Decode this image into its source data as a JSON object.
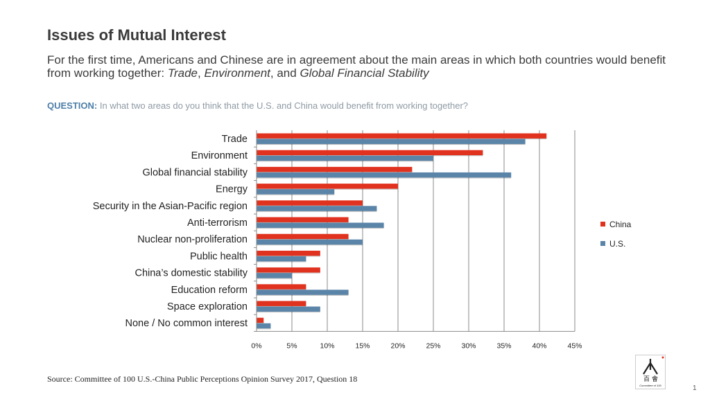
{
  "header": {
    "title": "Issues of Mutual Interest",
    "subtitle_plain": "For the first time, Americans and Chinese are in agreement about the main areas in which both countries would benefit from working together: ",
    "subtitle_italic_1": "Trade",
    "subtitle_sep_1": ", ",
    "subtitle_italic_2": "Environment",
    "subtitle_sep_2": ", and ",
    "subtitle_italic_3": "Global Financial Stability"
  },
  "question": {
    "label": "QUESTION:",
    "text": "In what two areas do you think that the U.S. and China would benefit from working together?"
  },
  "chart_data": {
    "type": "bar",
    "orientation": "horizontal",
    "categories": [
      "Trade",
      "Environment",
      "Global financial stability",
      "Energy",
      "Security in the Asian-Pacific region",
      "Anti-terrorism",
      "Nuclear non-proliferation",
      "Public health",
      "China’s domestic stability",
      "Education reform",
      "Space exploration",
      "None / No common interest"
    ],
    "series": [
      {
        "name": "China",
        "color": "#e0321e",
        "values": [
          41,
          32,
          22,
          20,
          15,
          13,
          13,
          9,
          9,
          7,
          7,
          1
        ]
      },
      {
        "name": "U.S.",
        "color": "#5a84a8",
        "values": [
          38,
          25,
          36,
          11,
          17,
          18,
          15,
          7,
          5,
          13,
          9,
          2
        ]
      }
    ],
    "xlim": [
      0,
      45
    ],
    "xticks": [
      "0%",
      "5%",
      "10%",
      "15%",
      "20%",
      "25%",
      "30%",
      "35%",
      "40%",
      "45%"
    ],
    "grid": true,
    "legend_position": "right"
  },
  "footer": {
    "source": "Source: Committee of 100 U.S.-China Public Perceptions Opinion Survey 2017, Question 18",
    "page_number": "1",
    "logo_text": "Committee of 100"
  }
}
